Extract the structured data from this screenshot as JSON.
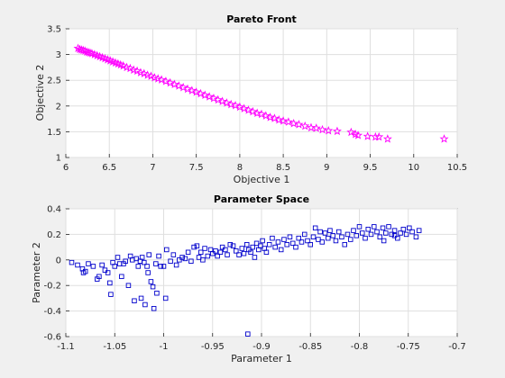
{
  "chart_data": [
    {
      "type": "scatter",
      "title": "Pareto Front",
      "xlabel": "Objective 1",
      "ylabel": "Objective 2",
      "xlim": [
        6,
        10.5
      ],
      "ylim": [
        1,
        3.5
      ],
      "xticks": [
        6,
        6.5,
        7,
        7.5,
        8,
        8.5,
        9,
        9.5,
        10,
        10.5
      ],
      "yticks": [
        1,
        1.5,
        2,
        2.5,
        3,
        3.5
      ],
      "xtick_labels": [
        "6",
        "6.5",
        "7",
        "7.5",
        "8",
        "8.5",
        "9",
        "9.5",
        "10",
        "10.5"
      ],
      "ytick_labels": [
        "1",
        "1.5",
        "2",
        "2.5",
        "3",
        "3.5"
      ],
      "grid": true,
      "marker": "star",
      "color": "#ff00ff",
      "points": [
        [
          6.14,
          3.12
        ],
        [
          6.16,
          3.1
        ],
        [
          6.18,
          3.09
        ],
        [
          6.2,
          3.08
        ],
        [
          6.22,
          3.07
        ],
        [
          6.24,
          3.05
        ],
        [
          6.26,
          3.04
        ],
        [
          6.28,
          3.03
        ],
        [
          6.3,
          3.02
        ],
        [
          6.33,
          3.0
        ],
        [
          6.36,
          2.98
        ],
        [
          6.39,
          2.96
        ],
        [
          6.42,
          2.94
        ],
        [
          6.45,
          2.92
        ],
        [
          6.48,
          2.9
        ],
        [
          6.51,
          2.88
        ],
        [
          6.54,
          2.86
        ],
        [
          6.57,
          2.84
        ],
        [
          6.6,
          2.82
        ],
        [
          6.63,
          2.8
        ],
        [
          6.66,
          2.78
        ],
        [
          6.7,
          2.75
        ],
        [
          6.74,
          2.73
        ],
        [
          6.78,
          2.7
        ],
        [
          6.82,
          2.68
        ],
        [
          6.86,
          2.65
        ],
        [
          6.9,
          2.63
        ],
        [
          6.94,
          2.6
        ],
        [
          6.98,
          2.58
        ],
        [
          7.02,
          2.55
        ],
        [
          7.06,
          2.53
        ],
        [
          7.1,
          2.51
        ],
        [
          7.15,
          2.48
        ],
        [
          7.2,
          2.45
        ],
        [
          7.25,
          2.42
        ],
        [
          7.3,
          2.39
        ],
        [
          7.35,
          2.36
        ],
        [
          7.4,
          2.33
        ],
        [
          7.45,
          2.3
        ],
        [
          7.5,
          2.27
        ],
        [
          7.55,
          2.24
        ],
        [
          7.6,
          2.21
        ],
        [
          7.65,
          2.18
        ],
        [
          7.7,
          2.15
        ],
        [
          7.75,
          2.12
        ],
        [
          7.8,
          2.09
        ],
        [
          7.85,
          2.06
        ],
        [
          7.9,
          2.03
        ],
        [
          7.95,
          2.01
        ],
        [
          8.0,
          1.98
        ],
        [
          8.05,
          1.95
        ],
        [
          8.1,
          1.92
        ],
        [
          8.15,
          1.89
        ],
        [
          8.2,
          1.86
        ],
        [
          8.25,
          1.84
        ],
        [
          8.3,
          1.81
        ],
        [
          8.35,
          1.78
        ],
        [
          8.4,
          1.76
        ],
        [
          8.45,
          1.73
        ],
        [
          8.5,
          1.71
        ],
        [
          8.56,
          1.69
        ],
        [
          8.62,
          1.66
        ],
        [
          8.68,
          1.64
        ],
        [
          8.75,
          1.61
        ],
        [
          8.82,
          1.58
        ],
        [
          8.88,
          1.57
        ],
        [
          8.95,
          1.54
        ],
        [
          9.02,
          1.52
        ],
        [
          9.12,
          1.51
        ],
        [
          9.28,
          1.49
        ],
        [
          9.33,
          1.45
        ],
        [
          9.36,
          1.43
        ],
        [
          9.47,
          1.41
        ],
        [
          9.56,
          1.4
        ],
        [
          9.6,
          1.4
        ],
        [
          9.7,
          1.36
        ],
        [
          10.35,
          1.36
        ]
      ]
    },
    {
      "type": "scatter",
      "title": "Parameter Space",
      "xlabel": "Parameter 1",
      "ylabel": "Parameter 2",
      "xlim": [
        -1.1,
        -0.7
      ],
      "ylim": [
        -0.6,
        0.4
      ],
      "xticks": [
        -1.1,
        -1.05,
        -1,
        -0.95,
        -0.9,
        -0.85,
        -0.8,
        -0.75,
        -0.7
      ],
      "yticks": [
        -0.6,
        -0.4,
        -0.2,
        0,
        0.2,
        0.4
      ],
      "xtick_labels": [
        "-1.1",
        "-1.05",
        "-1",
        "-0.95",
        "-0.9",
        "-0.85",
        "-0.8",
        "-0.75",
        "-0.7"
      ],
      "ytick_labels": [
        "-0.6",
        "-0.4",
        "-0.2",
        "0",
        "0.2",
        "0.4"
      ],
      "grid": true,
      "marker": "square",
      "color": "#0000cc",
      "points": [
        [
          -1.094,
          -0.02
        ],
        [
          -1.088,
          -0.04
        ],
        [
          -1.083,
          -0.07
        ],
        [
          -1.082,
          -0.1
        ],
        [
          -1.08,
          -0.09
        ],
        [
          -1.077,
          -0.03
        ],
        [
          -1.072,
          -0.05
        ],
        [
          -1.068,
          -0.15
        ],
        [
          -1.066,
          -0.13
        ],
        [
          -1.063,
          -0.04
        ],
        [
          -1.06,
          -0.08
        ],
        [
          -1.057,
          -0.1
        ],
        [
          -1.055,
          -0.18
        ],
        [
          -1.054,
          -0.27
        ],
        [
          -1.052,
          -0.02
        ],
        [
          -1.05,
          -0.05
        ],
        [
          -1.047,
          0.02
        ],
        [
          -1.045,
          -0.03
        ],
        [
          -1.043,
          -0.13
        ],
        [
          -1.041,
          -0.03
        ],
        [
          -1.039,
          -0.01
        ],
        [
          -1.036,
          -0.2
        ],
        [
          -1.034,
          0.03
        ],
        [
          -1.032,
          0.0
        ],
        [
          -1.03,
          -0.32
        ],
        [
          -1.028,
          0.01
        ],
        [
          -1.026,
          -0.05
        ],
        [
          -1.024,
          -0.01
        ],
        [
          -1.023,
          -0.3
        ],
        [
          -1.022,
          0.02
        ],
        [
          -1.02,
          -0.02
        ],
        [
          -1.019,
          -0.35
        ],
        [
          -1.017,
          -0.05
        ],
        [
          -1.016,
          -0.1
        ],
        [
          -1.015,
          0.04
        ],
        [
          -1.013,
          -0.17
        ],
        [
          -1.011,
          -0.21
        ],
        [
          -1.01,
          -0.38
        ],
        [
          -1.008,
          -0.03
        ],
        [
          -1.007,
          -0.26
        ],
        [
          -1.005,
          0.03
        ],
        [
          -1.003,
          -0.05
        ],
        [
          -1.0,
          -0.05
        ],
        [
          -0.998,
          -0.3
        ],
        [
          -0.997,
          0.08
        ],
        [
          -0.993,
          -0.01
        ],
        [
          -0.99,
          0.04
        ],
        [
          -0.987,
          -0.04
        ],
        [
          -0.984,
          0.0
        ],
        [
          -0.981,
          0.02
        ],
        [
          -0.978,
          0.01
        ],
        [
          -0.975,
          0.06
        ],
        [
          -0.972,
          -0.01
        ],
        [
          -0.969,
          0.1
        ],
        [
          -0.966,
          0.11
        ],
        [
          -0.964,
          0.02
        ],
        [
          -0.962,
          0.06
        ],
        [
          -0.96,
          0.0
        ],
        [
          -0.958,
          0.09
        ],
        [
          -0.955,
          0.03
        ],
        [
          -0.952,
          0.08
        ],
        [
          -0.95,
          0.05
        ],
        [
          -0.947,
          0.07
        ],
        [
          -0.945,
          0.03
        ],
        [
          -0.942,
          0.06
        ],
        [
          -0.94,
          0.1
        ],
        [
          -0.937,
          0.08
        ],
        [
          -0.935,
          0.04
        ],
        [
          -0.932,
          0.12
        ],
        [
          -0.929,
          0.11
        ],
        [
          -0.926,
          0.07
        ],
        [
          -0.923,
          0.04
        ],
        [
          -0.92,
          0.09
        ],
        [
          -0.918,
          0.05
        ],
        [
          -0.915,
          0.12
        ],
        [
          -0.913,
          0.08
        ],
        [
          -0.911,
          0.06
        ],
        [
          -0.909,
          0.1
        ],
        [
          -0.907,
          0.02
        ],
        [
          -0.905,
          0.13
        ],
        [
          -0.903,
          0.08
        ],
        [
          -0.901,
          0.11
        ],
        [
          -0.899,
          0.15
        ],
        [
          -0.897,
          0.09
        ],
        [
          -0.895,
          0.06
        ],
        [
          -0.892,
          0.12
        ],
        [
          -0.889,
          0.17
        ],
        [
          -0.886,
          0.1
        ],
        [
          -0.883,
          0.14
        ],
        [
          -0.88,
          0.08
        ],
        [
          -0.877,
          0.16
        ],
        [
          -0.874,
          0.12
        ],
        [
          -0.871,
          0.18
        ],
        [
          -0.868,
          0.13
        ],
        [
          -0.865,
          0.1
        ],
        [
          -0.862,
          0.17
        ],
        [
          -0.859,
          0.14
        ],
        [
          -0.856,
          0.2
        ],
        [
          -0.853,
          0.15
        ],
        [
          -0.85,
          0.12
        ],
        [
          -0.847,
          0.18
        ],
        [
          -0.845,
          0.25
        ],
        [
          -0.842,
          0.16
        ],
        [
          -0.84,
          0.22
        ],
        [
          -0.838,
          0.14
        ],
        [
          -0.835,
          0.21
        ],
        [
          -0.832,
          0.17
        ],
        [
          -0.83,
          0.23
        ],
        [
          -0.827,
          0.19
        ],
        [
          -0.824,
          0.15
        ],
        [
          -0.821,
          0.22
        ],
        [
          -0.818,
          0.18
        ],
        [
          -0.815,
          0.12
        ],
        [
          -0.812,
          0.2
        ],
        [
          -0.809,
          0.16
        ],
        [
          -0.806,
          0.23
        ],
        [
          -0.803,
          0.19
        ],
        [
          -0.8,
          0.26
        ],
        [
          -0.797,
          0.21
        ],
        [
          -0.794,
          0.17
        ],
        [
          -0.791,
          0.24
        ],
        [
          -0.788,
          0.2
        ],
        [
          -0.785,
          0.26
        ],
        [
          -0.782,
          0.22
        ],
        [
          -0.779,
          0.18
        ],
        [
          -0.776,
          0.25
        ],
        [
          -0.773,
          0.21
        ],
        [
          -0.77,
          0.26
        ],
        [
          -0.767,
          0.2
        ],
        [
          -0.764,
          0.23
        ],
        [
          -0.761,
          0.17
        ],
        [
          -0.758,
          0.21
        ],
        [
          -0.755,
          0.24
        ],
        [
          -0.752,
          0.2
        ],
        [
          -0.749,
          0.25
        ],
        [
          -0.746,
          0.22
        ],
        [
          -0.742,
          0.18
        ],
        [
          -0.739,
          0.23
        ],
        [
          -0.764,
          0.19
        ],
        [
          -0.775,
          0.15
        ],
        [
          -0.914,
          -0.58
        ]
      ]
    }
  ]
}
